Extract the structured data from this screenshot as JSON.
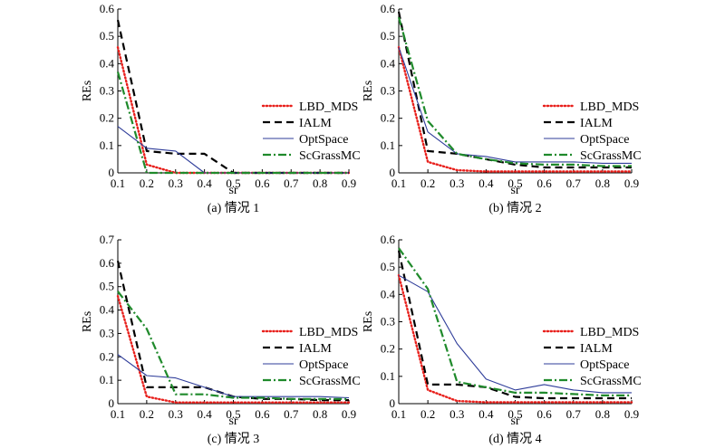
{
  "chart_data": [
    {
      "type": "line",
      "caption": "(a) 情况 1",
      "xlabel": "sr",
      "ylabel": "REs",
      "x": [
        0.1,
        0.2,
        0.3,
        0.4,
        0.5,
        0.6,
        0.7,
        0.8,
        0.9
      ],
      "xticks": [
        "0.1",
        "0.2",
        "0.3",
        "0.4",
        "0.5",
        "0.6",
        "0.7",
        "0.8",
        "0.9"
      ],
      "ylim": [
        0,
        0.6
      ],
      "yticks": [
        "0",
        "0.1",
        "0.2",
        "0.3",
        "0.4",
        "0.5",
        "0.6"
      ],
      "legend_position": "center-right",
      "series": [
        {
          "name": "LBD_MDS",
          "color": "#e8201c",
          "style": "dotted",
          "values": [
            0.46,
            0.03,
            0.0,
            0.0,
            0.0,
            0.0,
            0.0,
            0.0,
            0.0
          ]
        },
        {
          "name": "IALM",
          "color": "#000000",
          "style": "dashed",
          "values": [
            0.56,
            0.08,
            0.07,
            0.07,
            0.0,
            0.0,
            0.0,
            0.0,
            0.0
          ]
        },
        {
          "name": "OptSpace",
          "color": "#2f3d9a",
          "style": "solid",
          "values": [
            0.17,
            0.09,
            0.08,
            0.0,
            0.0,
            0.0,
            0.0,
            0.0,
            0.0
          ]
        },
        {
          "name": "ScGrassMC",
          "color": "#1f8a2b",
          "style": "dashdot",
          "values": [
            0.37,
            0.0,
            0.0,
            0.0,
            0.0,
            0.0,
            0.0,
            0.0,
            0.0
          ]
        }
      ]
    },
    {
      "type": "line",
      "caption": "(b) 情况 2",
      "xlabel": "sr",
      "ylabel": "REs",
      "x": [
        0.1,
        0.2,
        0.3,
        0.4,
        0.5,
        0.6,
        0.7,
        0.8,
        0.9
      ],
      "xticks": [
        "0.1",
        "0.2",
        "0.3",
        "0.4",
        "0.5",
        "0.6",
        "0.7",
        "0.8",
        "0.9"
      ],
      "ylim": [
        0,
        0.6
      ],
      "yticks": [
        "0",
        "0.1",
        "0.2",
        "0.3",
        "0.4",
        "0.5",
        "0.6"
      ],
      "legend_position": "center-right",
      "series": [
        {
          "name": "LBD_MDS",
          "color": "#e8201c",
          "style": "dotted",
          "values": [
            0.46,
            0.04,
            0.01,
            0.005,
            0.005,
            0.005,
            0.005,
            0.005,
            0.005
          ]
        },
        {
          "name": "IALM",
          "color": "#000000",
          "style": "dashed",
          "values": [
            0.59,
            0.08,
            0.07,
            0.05,
            0.03,
            0.02,
            0.02,
            0.02,
            0.02
          ]
        },
        {
          "name": "OptSpace",
          "color": "#2f3d9a",
          "style": "solid",
          "values": [
            0.46,
            0.15,
            0.07,
            0.06,
            0.04,
            0.04,
            0.04,
            0.035,
            0.035
          ]
        },
        {
          "name": "ScGrassMC",
          "color": "#1f8a2b",
          "style": "dashdot",
          "values": [
            0.57,
            0.19,
            0.07,
            0.05,
            0.035,
            0.03,
            0.03,
            0.025,
            0.025
          ]
        }
      ]
    },
    {
      "type": "line",
      "caption": "(c) 情况 3",
      "xlabel": "sr",
      "ylabel": "REs",
      "x": [
        0.1,
        0.2,
        0.3,
        0.4,
        0.5,
        0.6,
        0.7,
        0.8,
        0.9
      ],
      "xticks": [
        "0.1",
        "0.2",
        "0.3",
        "0.4",
        "0.5",
        "0.6",
        "0.7",
        "0.8",
        "0.9"
      ],
      "ylim": [
        0,
        0.7
      ],
      "yticks": [
        "0",
        "0.1",
        "0.2",
        "0.3",
        "0.4",
        "0.5",
        "0.6",
        "0.7"
      ],
      "legend_position": "center-right",
      "series": [
        {
          "name": "LBD_MDS",
          "color": "#e8201c",
          "style": "dotted",
          "values": [
            0.46,
            0.03,
            0.005,
            0.005,
            0.005,
            0.005,
            0.005,
            0.005,
            0.005
          ]
        },
        {
          "name": "IALM",
          "color": "#000000",
          "style": "dashed",
          "values": [
            0.61,
            0.07,
            0.07,
            0.07,
            0.03,
            0.02,
            0.02,
            0.015,
            0.015
          ]
        },
        {
          "name": "OptSpace",
          "color": "#2f3d9a",
          "style": "solid",
          "values": [
            0.21,
            0.12,
            0.11,
            0.07,
            0.03,
            0.03,
            0.03,
            0.03,
            0.025
          ]
        },
        {
          "name": "ScGrassMC",
          "color": "#1f8a2b",
          "style": "dashdot",
          "values": [
            0.48,
            0.32,
            0.04,
            0.04,
            0.025,
            0.025,
            0.02,
            0.02,
            0.02
          ]
        }
      ]
    },
    {
      "type": "line",
      "caption": "(d) 情况 4",
      "xlabel": "sr",
      "ylabel": "REs",
      "x": [
        0.1,
        0.2,
        0.3,
        0.4,
        0.5,
        0.6,
        0.7,
        0.8,
        0.9
      ],
      "xticks": [
        "0.1",
        "0.2",
        "0.3",
        "0.4",
        "0.5",
        "0.6",
        "0.7",
        "0.8",
        "0.9"
      ],
      "ylim": [
        0,
        0.6
      ],
      "yticks": [
        "0",
        "0.1",
        "0.2",
        "0.3",
        "0.4",
        "0.5",
        "0.6"
      ],
      "legend_position": "center-right",
      "series": [
        {
          "name": "LBD_MDS",
          "color": "#e8201c",
          "style": "dotted",
          "values": [
            0.47,
            0.05,
            0.01,
            0.005,
            0.005,
            0.005,
            0.005,
            0.005,
            0.005
          ]
        },
        {
          "name": "IALM",
          "color": "#000000",
          "style": "dashed",
          "values": [
            0.56,
            0.07,
            0.07,
            0.06,
            0.025,
            0.02,
            0.02,
            0.02,
            0.02
          ]
        },
        {
          "name": "OptSpace",
          "color": "#2f3d9a",
          "style": "solid",
          "values": [
            0.47,
            0.41,
            0.22,
            0.09,
            0.05,
            0.07,
            0.05,
            0.04,
            0.04
          ]
        },
        {
          "name": "ScGrassMC",
          "color": "#1f8a2b",
          "style": "dashdot",
          "values": [
            0.57,
            0.42,
            0.08,
            0.06,
            0.04,
            0.04,
            0.035,
            0.03,
            0.03
          ]
        }
      ]
    }
  ]
}
